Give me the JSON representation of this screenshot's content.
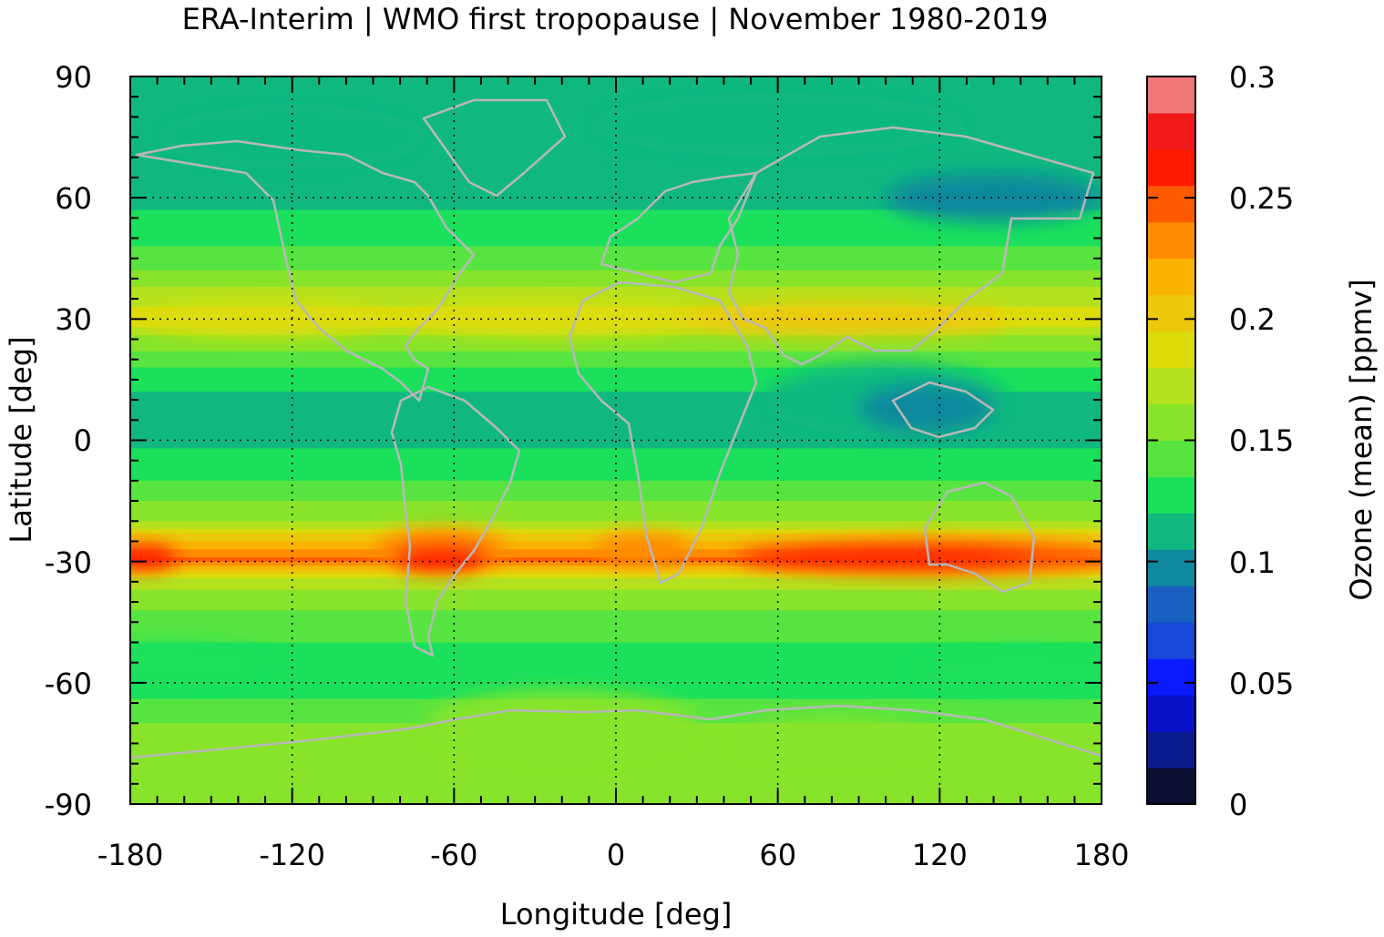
{
  "chart_data": {
    "type": "heatmap",
    "title": "ERA-Interim | WMO first tropopause | November 1980-2019",
    "xlabel": "Longitude [deg]",
    "ylabel": "Latitude [deg]",
    "colorbar_label": "Ozone (mean) [ppmv]",
    "xlim": [
      -180,
      180
    ],
    "ylim": [
      -90,
      90
    ],
    "x_ticks": [
      -180,
      -120,
      -60,
      0,
      60,
      120,
      180
    ],
    "y_ticks": [
      90,
      60,
      30,
      0,
      -30,
      -60,
      -90
    ],
    "x_tick_labels": [
      "-180",
      "-120",
      "-60",
      "0",
      "60",
      "120",
      "180"
    ],
    "y_tick_labels": [
      "90",
      "60",
      "30",
      "0",
      "-30",
      "-60",
      "-90"
    ],
    "grid": true,
    "colorbar": {
      "range": [
        0,
        0.3
      ],
      "ticks": [
        0.3,
        0.25,
        0.2,
        0.15,
        0.1,
        0.05,
        0
      ],
      "tick_labels": [
        "0.3",
        "0.25",
        "0.2",
        "0.15",
        "0.1",
        "0.05",
        "0"
      ],
      "levels": [
        0,
        0.015,
        0.03,
        0.045,
        0.06,
        0.075,
        0.09,
        0.105,
        0.12,
        0.135,
        0.15,
        0.165,
        0.18,
        0.195,
        0.21,
        0.225,
        0.24,
        0.255,
        0.27,
        0.285,
        0.3
      ],
      "colors": [
        "#0a0f30",
        "#0a1a8c",
        "#0a10c8",
        "#0a1aff",
        "#1848d8",
        "#1a60c0",
        "#10889e",
        "#10b880",
        "#1ae05c",
        "#58e440",
        "#88e42a",
        "#b4e21e",
        "#dcdc0a",
        "#ecc80a",
        "#f8b400",
        "#ff8c00",
        "#ff5a00",
        "#ff1a00",
        "#f01a1a",
        "#f07878",
        "#ffcccc"
      ]
    },
    "zonal_mean_profile": {
      "latitude": [
        90,
        75,
        60,
        45,
        35,
        30,
        25,
        15,
        5,
        0,
        -10,
        -20,
        -25,
        -30,
        -35,
        -45,
        -60,
        -70,
        -80,
        -90
      ],
      "ozone_ppmv": [
        0.115,
        0.105,
        0.115,
        0.14,
        0.175,
        0.19,
        0.16,
        0.125,
        0.11,
        0.115,
        0.135,
        0.165,
        0.21,
        0.245,
        0.17,
        0.14,
        0.125,
        0.15,
        0.15,
        0.155
      ]
    },
    "features": {
      "southern_hemisphere_max": {
        "lat": -30,
        "lon_range": [
          45,
          180
        ],
        "ozone_ppmv": 0.26
      },
      "northern_hemisphere_max": {
        "lat": 30,
        "lon_range": [
          60,
          120
        ],
        "ozone_ppmv": 0.2
      },
      "tropical_min": {
        "lat": 5,
        "lon_range": [
          90,
          145
        ],
        "ozone_ppmv": 0.09
      }
    }
  }
}
